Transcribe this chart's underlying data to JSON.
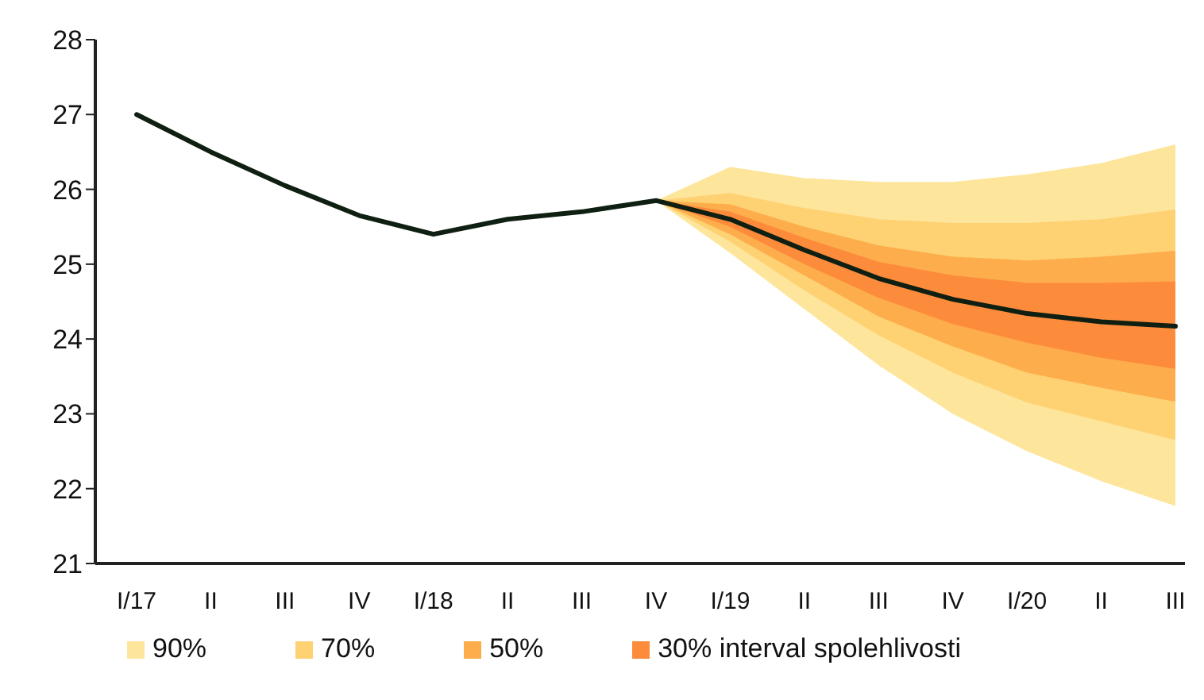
{
  "chart_data": {
    "type": "line",
    "categories": [
      "I/17",
      "II",
      "III",
      "IV",
      "I/18",
      "II",
      "III",
      "IV",
      "I/19",
      "II",
      "III",
      "IV",
      "I/20",
      "II",
      "III"
    ],
    "series": [
      {
        "type": "area",
        "name": "90%",
        "color": "#fee59c",
        "values": [
          null,
          null,
          null,
          null,
          null,
          null,
          null,
          null,
          null,
          null,
          null,
          null,
          null,
          null,
          null
        ],
        "lower": [
          null,
          null,
          null,
          null,
          null,
          null,
          null,
          25.85,
          25.15,
          24.4,
          23.65,
          23.0,
          22.5,
          22.1,
          21.77
        ],
        "upper": [
          null,
          null,
          null,
          null,
          null,
          null,
          null,
          25.85,
          26.3,
          26.15,
          26.1,
          26.1,
          26.2,
          26.35,
          26.6
        ]
      },
      {
        "type": "area",
        "name": "70%",
        "color": "#fed172",
        "values": [
          null,
          null,
          null,
          null,
          null,
          null,
          null,
          null,
          null,
          null,
          null,
          null,
          null,
          null,
          null
        ],
        "lower": [
          null,
          null,
          null,
          null,
          null,
          null,
          null,
          25.85,
          25.3,
          24.65,
          24.05,
          23.55,
          23.15,
          22.9,
          22.65
        ],
        "upper": [
          null,
          null,
          null,
          null,
          null,
          null,
          null,
          25.85,
          25.95,
          25.75,
          25.6,
          25.55,
          25.55,
          25.6,
          25.73
        ]
      },
      {
        "type": "area",
        "name": "50%",
        "color": "#fdad4b",
        "values": [
          null,
          null,
          null,
          null,
          null,
          null,
          null,
          null,
          null,
          null,
          null,
          null,
          null,
          null,
          null
        ],
        "lower": [
          null,
          null,
          null,
          null,
          null,
          null,
          null,
          25.85,
          25.4,
          24.85,
          24.3,
          23.9,
          23.55,
          23.35,
          23.16
        ],
        "upper": [
          null,
          null,
          null,
          null,
          null,
          null,
          null,
          25.85,
          25.8,
          25.5,
          25.25,
          25.1,
          25.05,
          25.1,
          25.18
        ]
      },
      {
        "type": "area",
        "name": "30% interval spolehlivosti",
        "color": "#fd8b3c",
        "values": [
          null,
          null,
          null,
          null,
          null,
          null,
          null,
          null,
          null,
          null,
          null,
          null,
          null,
          null,
          null
        ],
        "lower": [
          null,
          null,
          null,
          null,
          null,
          null,
          null,
          25.85,
          25.5,
          25.0,
          24.55,
          24.2,
          23.95,
          23.75,
          23.6
        ],
        "upper": [
          null,
          null,
          null,
          null,
          null,
          null,
          null,
          25.85,
          25.7,
          25.35,
          25.03,
          24.85,
          24.75,
          24.75,
          24.77
        ]
      },
      {
        "type": "line",
        "color": "#0f1f12",
        "values": [
          27.0,
          26.5,
          26.05,
          25.65,
          25.4,
          25.6,
          25.7,
          25.85,
          25.6,
          25.19,
          24.81,
          24.53,
          24.34,
          24.23,
          24.17
        ]
      }
    ],
    "ylim": [
      21,
      28
    ],
    "yticks": [
      21,
      22,
      23,
      24,
      25,
      26,
      27,
      28
    ],
    "grid": false,
    "legend": "bottom",
    "marker": "none",
    "line_style": "solid"
  }
}
